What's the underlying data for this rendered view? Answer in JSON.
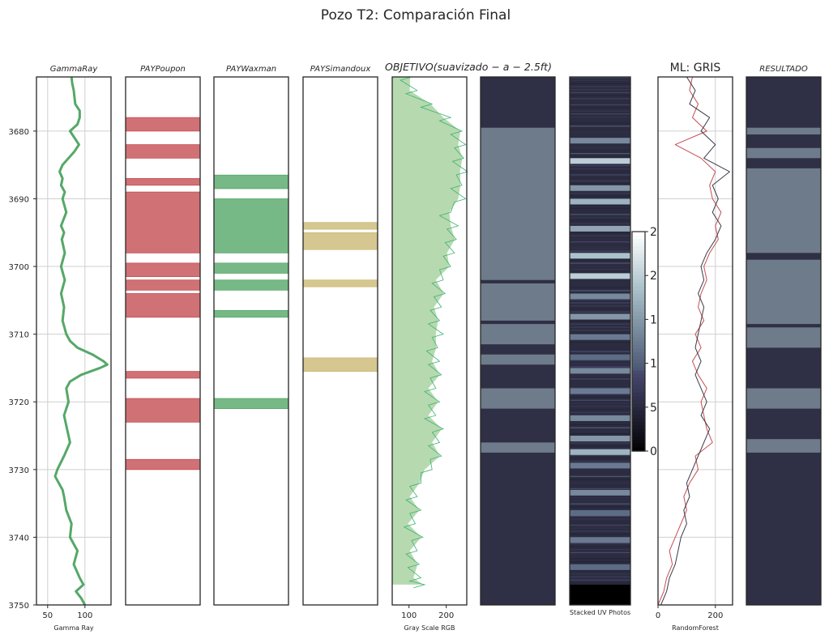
{
  "chart_data": {
    "type": "well_log_panels",
    "title": "Pozo T2: Comparación Final",
    "depth_axis": {
      "ylim": [
        3750,
        3672
      ],
      "ticks": [
        3680,
        3690,
        3700,
        3710,
        3720,
        3730,
        3740,
        3750
      ],
      "inverted": true
    },
    "panels": [
      {
        "title": "GammaRay",
        "italic": true,
        "type": "line",
        "xlabel": "Gamma Ray",
        "xlim": [
          35,
          135
        ],
        "xticks": [
          50,
          100
        ],
        "color": "#55a868",
        "grid": true,
        "series": [
          {
            "depth": [
              3672,
              3673,
              3674,
              3675,
              3676,
              3677,
              3678,
              3679,
              3680,
              3681,
              3682,
              3683,
              3684,
              3685,
              3686,
              3687,
              3688,
              3689,
              3690,
              3692,
              3694,
              3695,
              3696,
              3698,
              3700,
              3702,
              3704,
              3706,
              3708,
              3710,
              3711,
              3712,
              3713,
              3714,
              3714.5,
              3715,
              3716,
              3717,
              3718,
              3720,
              3722,
              3724,
              3726,
              3728,
              3730,
              3731,
              3732,
              3733,
              3734,
              3736,
              3738,
              3740,
              3742,
              3744,
              3746,
              3747,
              3748,
              3749,
              3750
            ],
            "x": [
              82,
              83,
              85,
              86,
              87,
              93,
              93,
              90,
              80,
              86,
              92,
              86,
              78,
              70,
              66,
              70,
              68,
              73,
              70,
              75,
              68,
              72,
              69,
              73,
              68,
              73,
              68,
              72,
              70,
              75,
              80,
              90,
              110,
              125,
              130,
              120,
              95,
              80,
              75,
              78,
              72,
              76,
              80,
              72,
              63,
              60,
              65,
              70,
              72,
              75,
              82,
              80,
              90,
              85,
              93,
              98,
              88,
              95,
              100
            ]
          }
        ]
      },
      {
        "title": "PAYPoupon",
        "italic": true,
        "type": "intervals",
        "color": "#c44e52",
        "intervals": [
          [
            3678,
            3680
          ],
          [
            3682,
            3684
          ],
          [
            3687,
            3688
          ],
          [
            3689,
            3698
          ],
          [
            3699.5,
            3701.5
          ],
          [
            3702,
            3703.5
          ],
          [
            3704,
            3707.5
          ],
          [
            3715.5,
            3716.5
          ],
          [
            3719.5,
            3723
          ],
          [
            3728.5,
            3730
          ]
        ]
      },
      {
        "title": "PAYWaxman",
        "italic": true,
        "type": "intervals",
        "color": "#55a868",
        "intervals": [
          [
            3686.5,
            3688.5
          ],
          [
            3690,
            3698
          ],
          [
            3699.5,
            3701
          ],
          [
            3702,
            3703.5
          ],
          [
            3706.5,
            3707.5
          ],
          [
            3719.5,
            3721
          ]
        ]
      },
      {
        "title": "PAYSimandoux",
        "italic": true,
        "type": "intervals",
        "color": "#ccb974",
        "intervals": [
          [
            3693.5,
            3694.5
          ],
          [
            3695,
            3697.5
          ],
          [
            3702,
            3703
          ],
          [
            3713.5,
            3715.5
          ]
        ]
      },
      {
        "title": "OBJETIVO(suavizado − a − 2.5ft)",
        "italic": true,
        "type": "fill_profile",
        "xlabel": "Gray Scale RGB",
        "xlim": [
          55,
          255
        ],
        "xticks": [
          100,
          200
        ],
        "color": "#3cb371",
        "depth_end": 3747,
        "series": [
          {
            "depth": [
              3672,
              3674,
              3676,
              3678,
              3680,
              3682,
              3684,
              3686,
              3688,
              3690,
              3692,
              3694,
              3696,
              3698,
              3700,
              3702,
              3704,
              3706,
              3708,
              3710,
              3712,
              3714,
              3716,
              3718,
              3720,
              3722,
              3724,
              3726,
              3728,
              3730,
              3732,
              3734,
              3736,
              3738,
              3740,
              3742,
              3744,
              3746,
              3747
            ],
            "x": [
              95,
              110,
              150,
              200,
              230,
              240,
              235,
              245,
              230,
              240,
              200,
              220,
              215,
              210,
              200,
              180,
              185,
              175,
              170,
              180,
              165,
              170,
              175,
              160,
              170,
              160,
              180,
              170,
              175,
              150,
              120,
              110,
              120,
              105,
              125,
              110,
              115,
              120,
              130
            ]
          }
        ]
      },
      {
        "title": "",
        "type": "class_bands",
        "base_color": "#2f2f45",
        "band_color": "#6e7b8b",
        "bands": [
          [
            3679.5,
            3702
          ],
          [
            3702.5,
            3708
          ],
          [
            3708.5,
            3711.5
          ],
          [
            3713,
            3714.5
          ],
          [
            3718,
            3721
          ],
          [
            3726,
            3727.5
          ]
        ]
      },
      {
        "title": "",
        "type": "image_strip",
        "xlabel": "Stacked UV Photos",
        "colormap": "bone",
        "stripes": [
          [
            3681,
            0.55
          ],
          [
            3684,
            0.8
          ],
          [
            3688,
            0.6
          ],
          [
            3690,
            0.7
          ],
          [
            3694,
            0.65
          ],
          [
            3698,
            0.75
          ],
          [
            3701,
            0.8
          ],
          [
            3704,
            0.55
          ],
          [
            3707,
            0.6
          ],
          [
            3710,
            0.5
          ],
          [
            3713,
            0.45
          ],
          [
            3715,
            0.55
          ],
          [
            3718,
            0.5
          ],
          [
            3722,
            0.55
          ],
          [
            3725,
            0.6
          ],
          [
            3727,
            0.7
          ],
          [
            3729,
            0.5
          ],
          [
            3733,
            0.55
          ],
          [
            3736,
            0.45
          ],
          [
            3740,
            0.5
          ],
          [
            3744,
            0.45
          ]
        ],
        "bottom_black_from": 3747
      },
      {
        "title": "",
        "type": "colorbar",
        "colormap": "bone",
        "tick_labels": [
          "2",
          "2",
          "1",
          "1",
          "5",
          "0"
        ]
      },
      {
        "title": "ML: GRIS",
        "italic": false,
        "type": "line",
        "xlabel": "RandomForest",
        "xlim": [
          0,
          260
        ],
        "xticks": [
          0,
          200
        ],
        "grid": true,
        "series": [
          {
            "name": "",
            "color": "#c44e52",
            "depth": [
              3672,
              3674,
              3676,
              3678,
              3680,
              3682,
              3684,
              3686,
              3688,
              3690,
              3692,
              3694,
              3696,
              3698,
              3700,
              3702,
              3704,
              3706,
              3708,
              3710,
              3712,
              3714,
              3716,
              3718,
              3720,
              3722,
              3724,
              3726,
              3728,
              3730,
              3732,
              3734,
              3736,
              3738,
              3740,
              3742,
              3744,
              3746,
              3748,
              3750
            ],
            "x": [
              120,
              110,
              140,
              120,
              170,
              60,
              150,
              200,
              180,
              190,
              220,
              200,
              210,
              180,
              160,
              170,
              150,
              140,
              160,
              130,
              150,
              120,
              140,
              170,
              150,
              160,
              170,
              190,
              130,
              140,
              110,
              90,
              100,
              80,
              60,
              40,
              50,
              30,
              20,
              0
            ]
          },
          {
            "name": "",
            "color": "#3a3a4a",
            "depth": [
              3672,
              3674,
              3676,
              3678,
              3680,
              3682,
              3684,
              3686,
              3688,
              3690,
              3692,
              3694,
              3696,
              3698,
              3700,
              3702,
              3704,
              3706,
              3708,
              3710,
              3712,
              3714,
              3716,
              3718,
              3720,
              3722,
              3724,
              3726,
              3728,
              3730,
              3732,
              3734,
              3736,
              3738,
              3740,
              3742,
              3744,
              3746,
              3748,
              3750
            ],
            "x": [
              100,
              130,
              110,
              180,
              150,
              200,
              160,
              250,
              190,
              210,
              190,
              220,
              200,
              170,
              150,
              160,
              140,
              160,
              150,
              140,
              130,
              150,
              130,
              150,
              170,
              150,
              180,
              160,
              140,
              120,
              100,
              110,
              90,
              100,
              80,
              70,
              60,
              40,
              30,
              10
            ]
          }
        ]
      },
      {
        "title": "RESULTADO",
        "italic": true,
        "type": "class_bands",
        "base_color": "#2f2f45",
        "band_color": "#6e7b8b",
        "bands": [
          [
            3679.5,
            3680.5
          ],
          [
            3682.5,
            3684
          ],
          [
            3685.5,
            3698
          ],
          [
            3699,
            3708.5
          ],
          [
            3709,
            3712
          ],
          [
            3718,
            3721
          ],
          [
            3725.5,
            3727.5
          ]
        ]
      }
    ]
  }
}
